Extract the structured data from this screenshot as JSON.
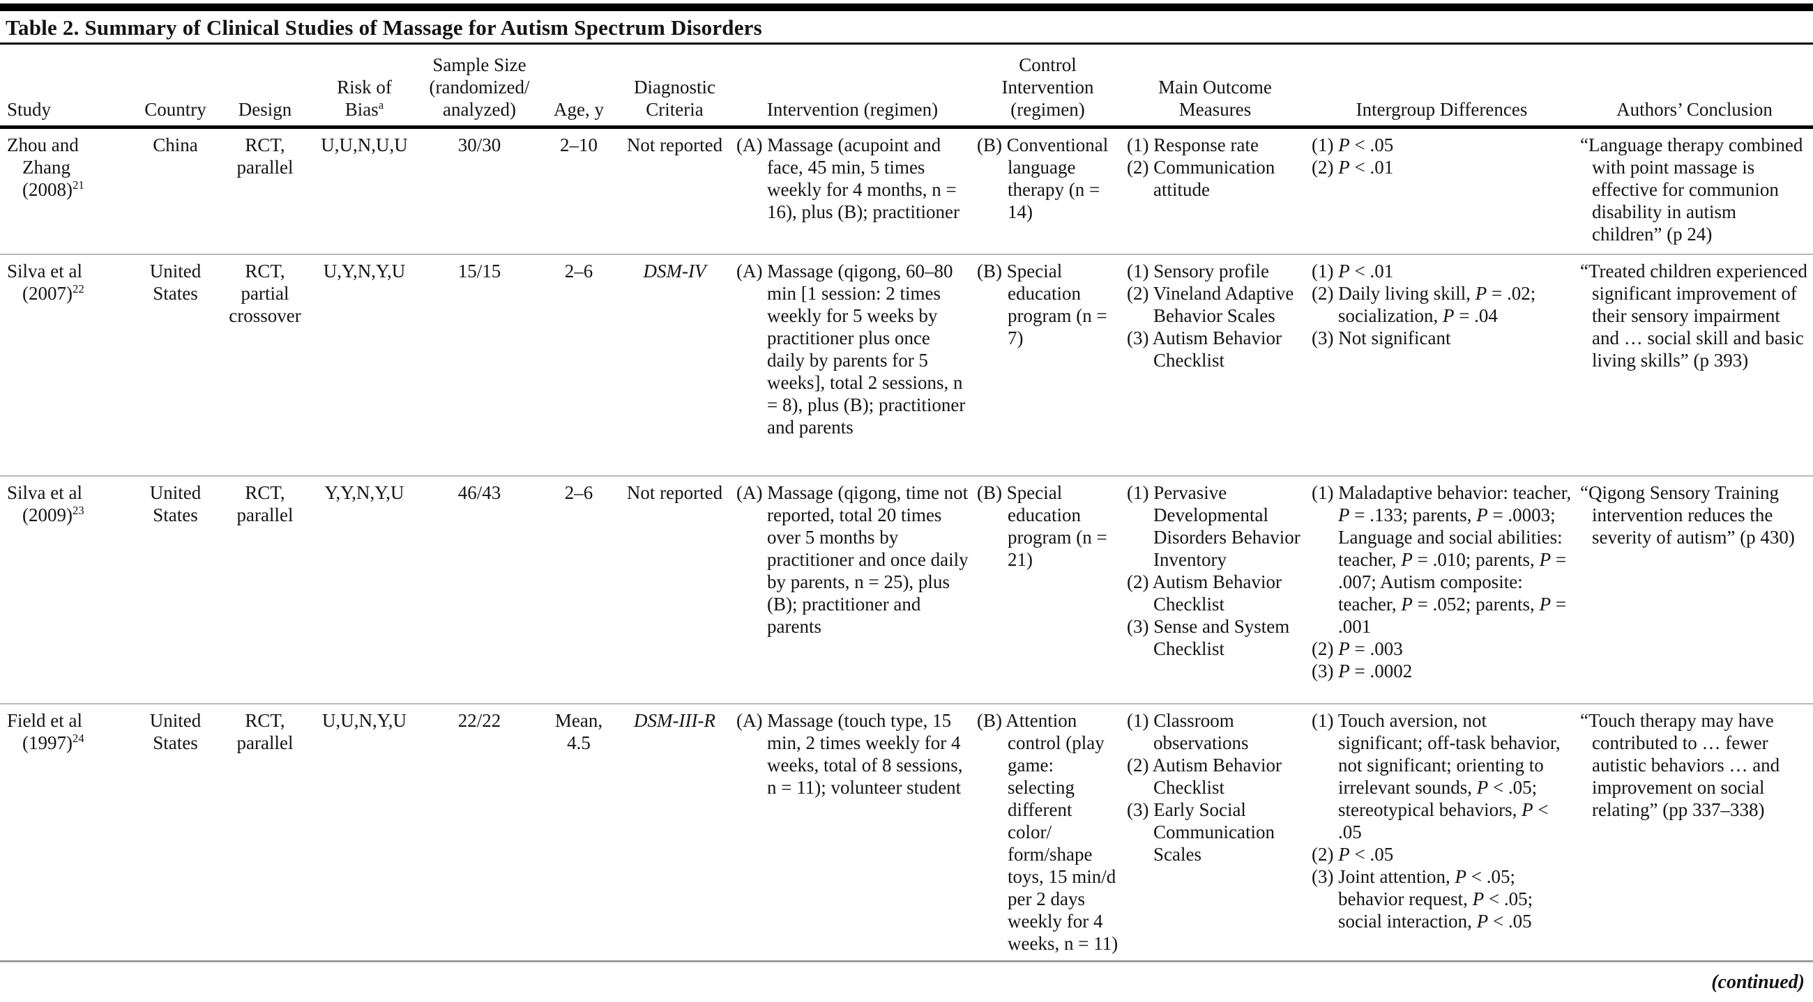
{
  "table": {
    "title": "Table 2. Summary of Clinical Studies of Massage for Autism Spectrum Disorders",
    "continued": "(continued)",
    "headers": [
      {
        "lines": [
          "Study"
        ]
      },
      {
        "lines": [
          "Country"
        ]
      },
      {
        "lines": [
          "Design"
        ]
      },
      {
        "lines": [
          "Risk of",
          "Bias"
        ],
        "sup": "a"
      },
      {
        "lines": [
          "Sample Size",
          "(randomized/",
          "analyzed)"
        ]
      },
      {
        "lines": [
          "Age, y"
        ]
      },
      {
        "lines": [
          "Diagnostic",
          "Criteria"
        ]
      },
      {
        "lines": [
          "Intervention (regimen)"
        ]
      },
      {
        "lines": [
          "Control",
          "Intervention",
          "(regimen)"
        ]
      },
      {
        "lines": [
          "Main Outcome",
          "Measures"
        ]
      },
      {
        "lines": [
          "Intergroup Differences"
        ]
      },
      {
        "lines": [
          "Authors’ Conclusion"
        ]
      }
    ],
    "rows": [
      {
        "study": {
          "lines": [
            "Zhou and",
            "Zhang",
            "(2008)"
          ],
          "sup": "21"
        },
        "country": {
          "lines": [
            "China"
          ]
        },
        "design": {
          "lines": [
            "RCT,",
            "parallel"
          ]
        },
        "risk_of_bias": "U,U,N,U,U",
        "sample_size": "30/30",
        "age": {
          "lines": [
            "2–10"
          ]
        },
        "diagnostic": "Not reported",
        "intervention": "(A) Massage (acupoint and face, 45 min, 5 times weekly for 4 months, n = 16), plus (B); practitioner",
        "control": "(B) Conventional language therapy (n = 14)",
        "outcomes": [
          "(1) Response rate",
          "(2) Communication attitude"
        ],
        "differences": [
          "(1) P < .05",
          "(2) P < .01"
        ],
        "conclusion": "“Language therapy combined with point massage is effective for communion disability in autism children” (p 24)"
      },
      {
        "study": {
          "lines": [
            "Silva et al",
            "(2007)"
          ],
          "sup": "22"
        },
        "country": {
          "lines": [
            "United",
            "States"
          ]
        },
        "design": {
          "lines": [
            "RCT,",
            "partial",
            "crossover"
          ]
        },
        "risk_of_bias": "U,Y,N,Y,U",
        "sample_size": "15/15",
        "age": {
          "lines": [
            "2–6"
          ]
        },
        "diagnostic": "DSM-IV",
        "intervention": "(A) Massage (qigong, 60–80 min [1 session: 2 times weekly for 5 weeks by practitioner plus once daily by parents for 5 weeks], total 2 sessions, n = 8), plus (B); practitioner and parents",
        "control": "(B) Special education program (n = 7)",
        "outcomes": [
          "(1) Sensory profile",
          "(2) Vineland Adaptive Behavior Scales",
          "(3) Autism Behavior Checklist"
        ],
        "differences": [
          "(1) P < .01",
          "(2) Daily living skill, P = .02; socialization, P = .04",
          "(3) Not significant"
        ],
        "conclusion": "“Treated children experienced significant improvement of their sensory impairment and … social skill and basic living skills” (p 393)"
      },
      {
        "study": {
          "lines": [
            "Silva et al",
            "(2009)"
          ],
          "sup": "23"
        },
        "country": {
          "lines": [
            "United",
            "States"
          ]
        },
        "design": {
          "lines": [
            "RCT,",
            "parallel"
          ]
        },
        "risk_of_bias": "Y,Y,N,Y,U",
        "sample_size": "46/43",
        "age": {
          "lines": [
            "2–6"
          ]
        },
        "diagnostic": "Not reported",
        "intervention": "(A) Massage (qigong, time not reported, total 20 times over 5 months by practitioner and once daily by parents, n = 25), plus (B); practitioner and parents",
        "control": "(B) Special education program (n = 21)",
        "outcomes": [
          "(1) Pervasive Developmental Disorders Behavior Inventory",
          "(2) Autism Behavior Checklist",
          "(3) Sense and System Checklist"
        ],
        "differences": [
          "(1) Maladaptive behavior: teacher, P = .133; parents, P = .0003; Language and social abilities: teacher, P = .010; parents, P = .007; Autism composite: teacher, P = .052; parents, P = .001",
          "(2) P = .003",
          "(3) P = .0002"
        ],
        "conclusion": "“Qigong Sensory Training intervention reduces the severity of autism” (p 430)"
      },
      {
        "study": {
          "lines": [
            "Field et al",
            "(1997)"
          ],
          "sup": "24"
        },
        "country": {
          "lines": [
            "United",
            "States"
          ]
        },
        "design": {
          "lines": [
            "RCT,",
            "parallel"
          ]
        },
        "risk_of_bias": "U,U,N,Y,U",
        "sample_size": "22/22",
        "age": {
          "lines": [
            "Mean,",
            "4.5"
          ]
        },
        "diagnostic": "DSM-III-R",
        "intervention": "(A) Massage (touch type, 15 min, 2 times weekly for 4 weeks, total of 8 sessions, n = 11); volunteer student",
        "control": "(B) Attention control (play game: selecting different color/ form/shape toys, 15 min/d per 2 days weekly for 4 weeks, n = 11)",
        "outcomes": [
          "(1) Classroom observations",
          "(2) Autism Behavior Checklist",
          "(3) Early Social Communication Scales"
        ],
        "differences": [
          "(1) Touch aversion, not significant; off-task behavior, not significant; orienting to irrelevant sounds, P < .05; stereotypical behaviors, P < .05",
          "(2) P < .05",
          "(3) Joint attention, P < .05; behavior request, P < .05; social interaction, P < .05"
        ],
        "conclusion": "“Touch therapy may have contributed to … fewer autistic behaviors … and improvement on social relating” (pp 337–338)"
      }
    ]
  }
}
